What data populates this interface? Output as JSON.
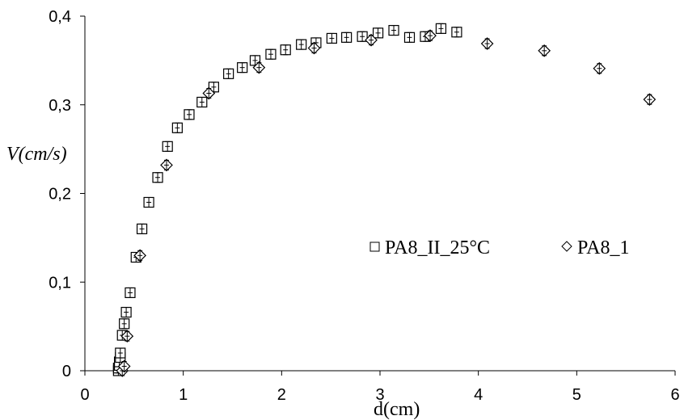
{
  "chart_data": {
    "type": "scatter",
    "xlabel": "d(cm)",
    "ylabel": "V(cm/s)",
    "xlim": [
      0,
      6
    ],
    "ylim": [
      0,
      0.4
    ],
    "x_ticks": [
      "0",
      "1",
      "2",
      "3",
      "4",
      "5",
      "6"
    ],
    "y_ticks": [
      "0",
      "0,1",
      "0,2",
      "0,3",
      "0,4"
    ],
    "grid": false,
    "legend_position": "center-right",
    "series": [
      {
        "name": "PA8_II_25°C",
        "marker": "square-errorbar",
        "points": [
          [
            0.34,
            0.0
          ],
          [
            0.34,
            0.003
          ],
          [
            0.35,
            0.006
          ],
          [
            0.35,
            0.01
          ],
          [
            0.36,
            0.015
          ],
          [
            0.36,
            0.02
          ],
          [
            0.38,
            0.04
          ],
          [
            0.4,
            0.053
          ],
          [
            0.42,
            0.066
          ],
          [
            0.46,
            0.088
          ],
          [
            0.52,
            0.128
          ],
          [
            0.58,
            0.16
          ],
          [
            0.65,
            0.19
          ],
          [
            0.74,
            0.218
          ],
          [
            0.84,
            0.253
          ],
          [
            0.94,
            0.274
          ],
          [
            1.06,
            0.289
          ],
          [
            1.19,
            0.303
          ],
          [
            1.31,
            0.32
          ],
          [
            1.46,
            0.335
          ],
          [
            1.6,
            0.342
          ],
          [
            1.73,
            0.35
          ],
          [
            1.89,
            0.357
          ],
          [
            2.04,
            0.362
          ],
          [
            2.2,
            0.368
          ],
          [
            2.35,
            0.37
          ],
          [
            2.51,
            0.375
          ],
          [
            2.66,
            0.376
          ],
          [
            2.82,
            0.377
          ],
          [
            2.98,
            0.381
          ],
          [
            3.14,
            0.384
          ],
          [
            3.3,
            0.376
          ],
          [
            3.46,
            0.377
          ],
          [
            3.62,
            0.386
          ],
          [
            3.78,
            0.382
          ]
        ]
      },
      {
        "name": "PA8_1",
        "marker": "diamond-errorbar",
        "points": [
          [
            0.38,
            0.0
          ],
          [
            0.4,
            0.005
          ],
          [
            0.43,
            0.039
          ],
          [
            0.56,
            0.13
          ],
          [
            0.83,
            0.232
          ],
          [
            1.26,
            0.313
          ],
          [
            1.77,
            0.342
          ],
          [
            2.33,
            0.364
          ],
          [
            2.91,
            0.373
          ],
          [
            3.51,
            0.378
          ],
          [
            4.09,
            0.369
          ],
          [
            4.67,
            0.361
          ],
          [
            5.23,
            0.341
          ],
          [
            5.74,
            0.306
          ]
        ]
      }
    ]
  }
}
